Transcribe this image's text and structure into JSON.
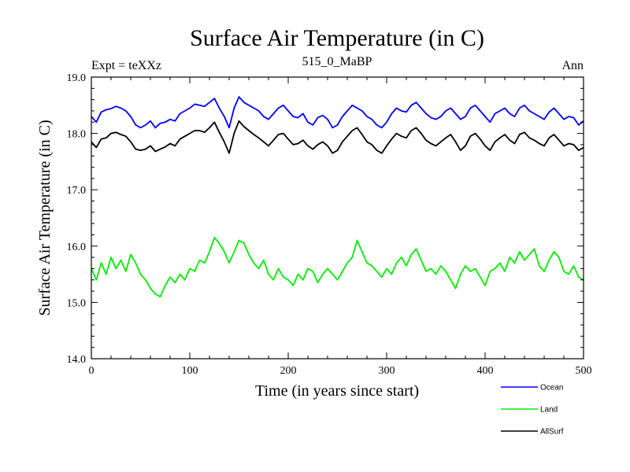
{
  "chart_data": {
    "type": "line",
    "title": "Surface Air Temperature (in C)",
    "subtitle": "515_0_MaBP",
    "experiment_label": "Expt = teXXz",
    "season_label": "Ann",
    "xlabel": "Time (in years since start)",
    "ylabel": "Surface Air Temperature (in C)",
    "xlim": [
      0,
      500
    ],
    "ylim": [
      14.0,
      19.0
    ],
    "x_ticks": [
      0,
      100,
      200,
      300,
      400,
      500
    ],
    "x_tick_labels": [
      "0",
      "100",
      "200",
      "300",
      "400",
      "500"
    ],
    "y_ticks": [
      14.0,
      15.0,
      16.0,
      17.0,
      18.0,
      19.0
    ],
    "y_tick_labels": [
      "14.0",
      "15.0",
      "16.0",
      "17.0",
      "18.0",
      "19.0"
    ],
    "grid": false,
    "legend_position": "bottom-right",
    "series": [
      {
        "name": "Ocean",
        "color": "#0000ff",
        "x": [
          0,
          5,
          10,
          15,
          20,
          25,
          30,
          35,
          40,
          45,
          50,
          55,
          60,
          65,
          70,
          75,
          80,
          85,
          90,
          95,
          100,
          105,
          110,
          115,
          120,
          125,
          130,
          135,
          140,
          145,
          150,
          155,
          160,
          165,
          170,
          175,
          180,
          185,
          190,
          195,
          200,
          205,
          210,
          215,
          220,
          225,
          230,
          235,
          240,
          245,
          250,
          255,
          260,
          265,
          270,
          275,
          280,
          285,
          290,
          295,
          300,
          305,
          310,
          315,
          320,
          325,
          330,
          335,
          340,
          345,
          350,
          355,
          360,
          365,
          370,
          375,
          380,
          385,
          390,
          395,
          400,
          405,
          410,
          415,
          420,
          425,
          430,
          435,
          440,
          445,
          450,
          455,
          460,
          465,
          470,
          475,
          480,
          485,
          490,
          495,
          500
        ],
        "values": [
          18.3,
          18.2,
          18.38,
          18.42,
          18.44,
          18.48,
          18.45,
          18.4,
          18.3,
          18.15,
          18.1,
          18.15,
          18.22,
          18.1,
          18.18,
          18.2,
          18.25,
          18.22,
          18.35,
          18.4,
          18.45,
          18.52,
          18.5,
          18.48,
          18.55,
          18.62,
          18.45,
          18.3,
          18.1,
          18.45,
          18.65,
          18.55,
          18.5,
          18.45,
          18.4,
          18.3,
          18.25,
          18.35,
          18.45,
          18.5,
          18.4,
          18.3,
          18.28,
          18.35,
          18.2,
          18.15,
          18.28,
          18.32,
          18.25,
          18.1,
          18.15,
          18.3,
          18.4,
          18.5,
          18.45,
          18.4,
          18.3,
          18.25,
          18.15,
          18.1,
          18.2,
          18.35,
          18.45,
          18.4,
          18.38,
          18.5,
          18.55,
          18.45,
          18.35,
          18.28,
          18.25,
          18.3,
          18.4,
          18.45,
          18.35,
          18.25,
          18.3,
          18.45,
          18.5,
          18.4,
          18.3,
          18.2,
          18.35,
          18.4,
          18.45,
          18.35,
          18.3,
          18.45,
          18.5,
          18.4,
          18.35,
          18.3,
          18.25,
          18.38,
          18.45,
          18.35,
          18.25,
          18.3,
          18.28,
          18.15,
          18.22
        ]
      },
      {
        "name": "Land",
        "color": "#00ee00",
        "x": [
          0,
          5,
          10,
          15,
          20,
          25,
          30,
          35,
          40,
          45,
          50,
          55,
          60,
          65,
          70,
          75,
          80,
          85,
          90,
          95,
          100,
          105,
          110,
          115,
          120,
          125,
          130,
          135,
          140,
          145,
          150,
          155,
          160,
          165,
          170,
          175,
          180,
          185,
          190,
          195,
          200,
          205,
          210,
          215,
          220,
          225,
          230,
          235,
          240,
          245,
          250,
          255,
          260,
          265,
          270,
          275,
          280,
          285,
          290,
          295,
          300,
          305,
          310,
          315,
          320,
          325,
          330,
          335,
          340,
          345,
          350,
          355,
          360,
          365,
          370,
          375,
          380,
          385,
          390,
          395,
          400,
          405,
          410,
          415,
          420,
          425,
          430,
          435,
          440,
          445,
          450,
          455,
          460,
          465,
          470,
          475,
          480,
          485,
          490,
          495,
          500
        ],
        "values": [
          15.6,
          15.4,
          15.7,
          15.5,
          15.8,
          15.6,
          15.75,
          15.55,
          15.85,
          15.7,
          15.5,
          15.4,
          15.25,
          15.15,
          15.1,
          15.3,
          15.45,
          15.35,
          15.5,
          15.4,
          15.6,
          15.55,
          15.75,
          15.7,
          15.9,
          16.15,
          16.05,
          15.9,
          15.7,
          15.9,
          16.1,
          16.05,
          15.85,
          15.7,
          15.6,
          15.75,
          15.5,
          15.4,
          15.6,
          15.45,
          15.4,
          15.3,
          15.5,
          15.4,
          15.6,
          15.55,
          15.35,
          15.5,
          15.6,
          15.5,
          15.4,
          15.55,
          15.7,
          15.8,
          16.1,
          15.9,
          15.7,
          15.65,
          15.55,
          15.45,
          15.6,
          15.5,
          15.7,
          15.8,
          15.65,
          15.85,
          15.95,
          15.75,
          15.55,
          15.6,
          15.5,
          15.65,
          15.55,
          15.4,
          15.25,
          15.5,
          15.65,
          15.55,
          15.6,
          15.45,
          15.3,
          15.55,
          15.6,
          15.7,
          15.55,
          15.8,
          15.7,
          15.9,
          15.75,
          15.85,
          15.95,
          15.65,
          15.55,
          15.75,
          15.9,
          15.8,
          15.55,
          15.5,
          15.65,
          15.45,
          15.4
        ]
      },
      {
        "name": "AllSurf",
        "color": "#000000",
        "x": [
          0,
          5,
          10,
          15,
          20,
          25,
          30,
          35,
          40,
          45,
          50,
          55,
          60,
          65,
          70,
          75,
          80,
          85,
          90,
          95,
          100,
          105,
          110,
          115,
          120,
          125,
          130,
          135,
          140,
          145,
          150,
          155,
          160,
          165,
          170,
          175,
          180,
          185,
          190,
          195,
          200,
          205,
          210,
          215,
          220,
          225,
          230,
          235,
          240,
          245,
          250,
          255,
          260,
          265,
          270,
          275,
          280,
          285,
          290,
          295,
          300,
          305,
          310,
          315,
          320,
          325,
          330,
          335,
          340,
          345,
          350,
          355,
          360,
          365,
          370,
          375,
          380,
          385,
          390,
          395,
          400,
          405,
          410,
          415,
          420,
          425,
          430,
          435,
          440,
          445,
          450,
          455,
          460,
          465,
          470,
          475,
          480,
          485,
          490,
          495,
          500
        ],
        "values": [
          17.85,
          17.75,
          17.9,
          17.92,
          18.0,
          18.02,
          17.98,
          17.95,
          17.85,
          17.72,
          17.7,
          17.72,
          17.78,
          17.68,
          17.72,
          17.76,
          17.82,
          17.78,
          17.9,
          17.95,
          18.0,
          18.05,
          18.05,
          18.02,
          18.1,
          18.2,
          18.02,
          17.85,
          17.65,
          18.0,
          18.22,
          18.12,
          18.05,
          17.98,
          17.92,
          17.85,
          17.78,
          17.88,
          17.98,
          18.0,
          17.9,
          17.8,
          17.82,
          17.88,
          17.78,
          17.72,
          17.8,
          17.85,
          17.78,
          17.65,
          17.7,
          17.85,
          17.95,
          18.05,
          18.1,
          17.98,
          17.85,
          17.8,
          17.7,
          17.65,
          17.78,
          17.9,
          18.0,
          17.95,
          17.92,
          18.05,
          18.1,
          18.0,
          17.88,
          17.82,
          17.78,
          17.85,
          17.92,
          17.98,
          17.85,
          17.7,
          17.78,
          17.95,
          18.0,
          17.9,
          17.78,
          17.7,
          17.85,
          17.92,
          17.98,
          17.88,
          17.82,
          17.98,
          18.02,
          17.92,
          17.88,
          17.82,
          17.78,
          17.92,
          17.98,
          17.88,
          17.78,
          17.82,
          17.8,
          17.7,
          17.75
        ]
      }
    ]
  }
}
